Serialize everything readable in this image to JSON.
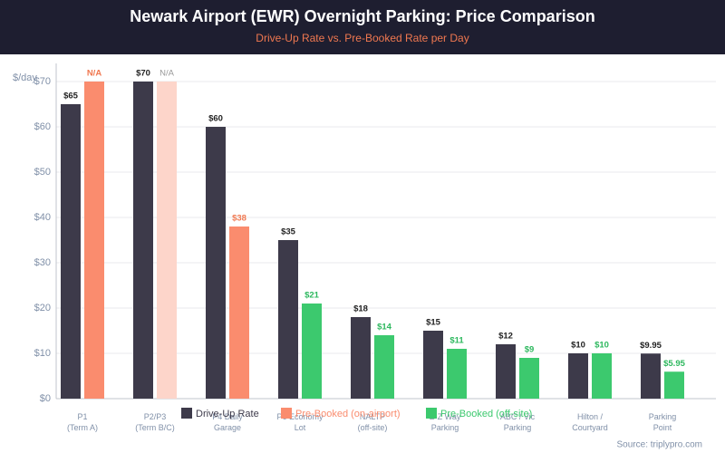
{
  "chart_data": {
    "type": "bar",
    "title": "Newark Airport (EWR) Overnight Parking: Price Comparison",
    "subtitle": "Drive-Up Rate vs. Pre-Booked Rate per Day",
    "y_label": "$/day",
    "source": "Source: triplypro.com",
    "categories": [
      "P1\n(Term A)",
      "P2/P3\n(Term B/C)",
      "P4 Daily\nGarage",
      "P6 Economy\nLot",
      "NALTP\n(off-site)",
      "E-Z Way\nParking",
      "ABC / Vic\nParking",
      "Hilton /\nCourtyard",
      "Parking\nPoint"
    ],
    "series": [
      {
        "name": "Drive-Up Rate",
        "color": "#3d3a4a",
        "label_color": "#222222",
        "values": [
          65,
          70,
          60,
          35,
          18,
          15,
          12,
          10,
          9.95
        ],
        "value_labels": [
          "$65",
          "$70",
          "$60",
          "$35",
          "$18",
          "$15",
          "$12",
          "$10",
          "$9.95"
        ]
      },
      {
        "name": "Pre-Booked (on-airport)",
        "color": "#fa8c6e",
        "label_color": "#f07850",
        "point_colors": [
          "#fa8c6e",
          "#fdd5ca",
          "#fa8c6e",
          null,
          null,
          null,
          null,
          null,
          null
        ],
        "point_label_colors": [
          "#f07850",
          "#999999",
          "#f07850",
          null,
          null,
          null,
          null,
          null,
          null
        ],
        "values": [
          null,
          null,
          38,
          null,
          null,
          null,
          null,
          null,
          null
        ],
        "value_labels": [
          "N/A",
          "N/A",
          "$38",
          null,
          null,
          null,
          null,
          null,
          null
        ]
      },
      {
        "name": "Pre-Booked (off-site)",
        "color": "#3cc96e",
        "label_color": "#2db85e",
        "values": [
          null,
          null,
          null,
          21,
          14,
          11,
          9,
          10,
          5.95
        ],
        "value_labels": [
          null,
          null,
          null,
          "$21",
          "$14",
          "$11",
          "$9",
          "$10",
          "$5.95"
        ]
      }
    ],
    "ylim": [
      0,
      70
    ],
    "yticks": [
      {
        "value": 0,
        "label": "$0"
      },
      {
        "value": 10,
        "label": "$10"
      },
      {
        "value": 20,
        "label": "$20"
      },
      {
        "value": 30,
        "label": "$30"
      },
      {
        "value": 40,
        "label": "$40"
      },
      {
        "value": 50,
        "label": "$50"
      },
      {
        "value": 60,
        "label": "$60"
      },
      {
        "value": 70,
        "label": "$70"
      }
    ],
    "grid": true
  }
}
